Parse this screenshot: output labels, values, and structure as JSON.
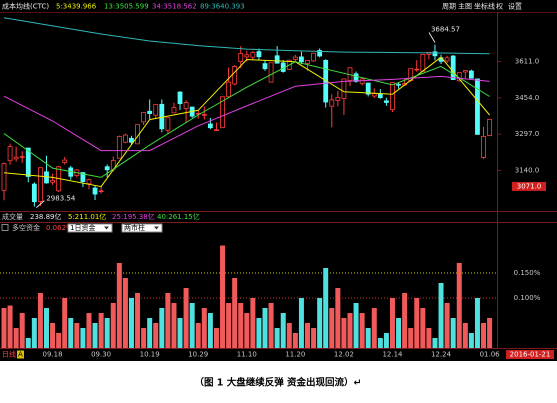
{
  "header": {
    "indicator": "成本均线(CTC)",
    "controls": [
      "周期",
      "主图",
      "坐标线",
      "权",
      "设置"
    ]
  },
  "volume_row": {
    "title": "成交量",
    "items": [
      "238.89亿",
      "5:211.01亿",
      "25:195.38亿",
      "40:261.15亿"
    ]
  },
  "period_label": "日线",
  "period_badge": "A",
  "caption": "（图 1  大盘继续反弹  资金出现回流）↵",
  "chart_data": [
    {
      "type": "candlestick",
      "categories": [
        null,
        null,
        null,
        null,
        null,
        null,
        null,
        null,
        "09.18",
        null,
        null,
        null,
        null,
        null,
        null,
        null,
        "09.30",
        null,
        null,
        null,
        null,
        null,
        null,
        null,
        "10.19",
        null,
        null,
        null,
        null,
        null,
        null,
        null,
        "10.29",
        null,
        null,
        null,
        null,
        null,
        null,
        null,
        "11.10",
        null,
        null,
        null,
        null,
        null,
        null,
        null,
        "11.20",
        null,
        null,
        null,
        null,
        null,
        null,
        null,
        "12.02",
        null,
        null,
        null,
        null,
        null,
        null,
        null,
        "12.14",
        null,
        null,
        null,
        null,
        null,
        null,
        null,
        "12.24",
        null,
        null,
        null,
        null,
        null,
        null,
        null,
        "01.06"
      ],
      "open": [
        3054,
        3182,
        3190,
        3197,
        3237,
        3081,
        3006,
        3134,
        3089,
        3052,
        3174,
        3151,
        3118,
        3131,
        3083,
        3064,
        3049,
        3156,
        3145,
        3193,
        3262,
        3279,
        3255,
        3350,
        3396,
        3379,
        3426,
        3314,
        3389,
        3479,
        3408,
        3414,
        3384,
        3380,
        3341,
        3316,
        3325,
        3459,
        3514,
        3611,
        3631,
        3630,
        3654,
        3602,
        3522,
        3636,
        3605,
        3577,
        3620,
        3631,
        3602,
        3614,
        3659,
        3616,
        3418,
        3442,
        3451,
        3529,
        3558,
        3517,
        3518,
        3462,
        3470,
        3441,
        3403,
        3512,
        3510,
        3529,
        3578,
        3569,
        3642,
        3653,
        3627,
        3614,
        3635,
        3528,
        3566,
        3570,
        3536,
        3196,
        3291
      ],
      "high": [
        3174,
        3256,
        3243,
        3223,
        3237,
        3089,
        3153,
        3204,
        3126,
        3160,
        3199,
        3160,
        3146,
        3133,
        3104,
        3076,
        3073,
        3166,
        3200,
        3291,
        3299,
        3290,
        3338,
        3393,
        3447,
        3425,
        3447,
        3369,
        3433,
        3483,
        3444,
        3416,
        3399,
        3417,
        3367,
        3347,
        3459,
        3585,
        3596,
        3678,
        3658,
        3657,
        3667,
        3617,
        3607,
        3678,
        3617,
        3617,
        3640,
        3654,
        3616,
        3647,
        3668,
        3621,
        3470,
        3483,
        3538,
        3586,
        3568,
        3543,
        3518,
        3495,
        3492,
        3454,
        3521,
        3522,
        3537,
        3581,
        3617,
        3643,
        3651,
        3684.57,
        3641,
        3636,
        3639,
        3564,
        3573,
        3576,
        3538,
        3328,
        3362
      ],
      "low": [
        3011,
        3165,
        3178,
        3173,
        3089,
        2983.54,
        2986,
        3083,
        3078,
        3047,
        3166,
        3100,
        3109,
        3068,
        3058,
        3012,
        3039,
        3112,
        3135,
        3193,
        3258,
        3252,
        3254,
        3337,
        3362,
        3367,
        3305,
        3299,
        3389,
        3402,
        3345,
        3368,
        3364,
        3360,
        3318,
        3312,
        3325,
        3459,
        3508,
        3582,
        3611,
        3615,
        3617,
        3571,
        3521,
        3602,
        3563,
        3575,
        3607,
        3600,
        3571,
        3610,
        3629,
        3412,
        3327,
        3417,
        3380,
        3505,
        3519,
        3508,
        3460,
        3453,
        3450,
        3420,
        3393,
        3494,
        3506,
        3524,
        3567,
        3568,
        3620,
        3617,
        3600,
        3605,
        3533,
        3524,
        3538,
        3538,
        3295,
        3189,
        3288
      ],
      "close": [
        3170,
        3243,
        3197,
        3200,
        3114,
        3005,
        3152,
        3086,
        3097,
        3156,
        3185,
        3115,
        3142,
        3092,
        3100,
        3038,
        3052,
        3143,
        3183,
        3287,
        3293,
        3262,
        3338,
        3391,
        3386,
        3425,
        3320,
        3368,
        3412,
        3429,
        3434,
        3375,
        3387,
        3382,
        3325,
        3316,
        3459,
        3522,
        3590,
        3646,
        3640,
        3650,
        3632,
        3580,
        3606,
        3604,
        3568,
        3617,
        3630,
        3610,
        3616,
        3647,
        3635,
        3436,
        3445,
        3456,
        3536,
        3584,
        3525,
        3536,
        3470,
        3472,
        3455,
        3434,
        3520,
        3510,
        3516,
        3580,
        3578,
        3642,
        3651,
        3636,
        3612,
        3627,
        3533,
        3563,
        3572,
        3539,
        3296,
        3287,
        3361
      ],
      "up_color": "#ff3c3c",
      "down_color": "#54fcfc",
      "ylim": [
        2969,
        3808
      ],
      "yticks": [
        {
          "value": 3611,
          "label": "3611.0"
        },
        {
          "value": 3454,
          "label": "3454.0"
        },
        {
          "value": 3297,
          "label": "3297.0"
        },
        {
          "value": 3140,
          "label": "3140.0"
        }
      ],
      "cursor_price": {
        "value": 3071,
        "label": "3071.0"
      },
      "cursor_date": "2016-01-21",
      "moving_averages": [
        {
          "name": "5:3439.966",
          "color": "#f0f000",
          "x": [
            0,
            8,
            16,
            24,
            32,
            40,
            48,
            56,
            64,
            72,
            80
          ],
          "values": [
            3130,
            3110,
            3070,
            3360,
            3400,
            3620,
            3610,
            3480,
            3470,
            3630,
            3380
          ]
        },
        {
          "name": "13:3505.599",
          "color": "#40e040",
          "x": [
            0,
            8,
            16,
            24,
            32,
            40,
            48,
            56,
            64,
            72,
            80
          ],
          "values": [
            3300,
            3150,
            3110,
            3250,
            3380,
            3500,
            3610,
            3560,
            3510,
            3590,
            3460
          ]
        },
        {
          "name": "34:3518.562",
          "color": "#e040e0",
          "x": [
            0,
            8,
            16,
            24,
            32,
            40,
            48,
            56,
            64,
            72,
            80
          ],
          "values": [
            3461,
            3354,
            3226,
            3226,
            3333,
            3419,
            3504,
            3525,
            3534,
            3547,
            3525
          ]
        },
        {
          "name": "89:3640.393",
          "color": "#30b8b8",
          "x": [
            0,
            8,
            16,
            24,
            32,
            40,
            48,
            56,
            64,
            72,
            80
          ],
          "values": [
            3800,
            3765,
            3730,
            3700,
            3680,
            3665,
            3658,
            3652,
            3650,
            3648,
            3645
          ]
        }
      ]
    },
    {
      "type": "bar",
      "title": "多空资金",
      "value_label": "0.062%",
      "selects": [
        "1日资金",
        "两市柱"
      ],
      "values": [
        0.08,
        0.085,
        0.04,
        0.07,
        0.02,
        0.06,
        0.11,
        0.08,
        0.05,
        0.03,
        0.1,
        0.06,
        0.05,
        0.04,
        0.07,
        0.05,
        0.07,
        0.06,
        0.09,
        0.17,
        0.14,
        0.1,
        0.11,
        0.04,
        0.06,
        0.05,
        0.08,
        0.11,
        0.09,
        0.06,
        0.12,
        0.09,
        0.05,
        0.08,
        0.07,
        0.04,
        0.205,
        0.09,
        0.14,
        0.09,
        0.07,
        0.1,
        0.06,
        0.08,
        0.09,
        0.04,
        0.07,
        0.05,
        0.03,
        0.1,
        0.05,
        0.04,
        0.1,
        0.16,
        0.08,
        0.12,
        0.06,
        0.07,
        0.09,
        0.07,
        0.04,
        0.08,
        0.02,
        0.03,
        0.1,
        0.06,
        0.11,
        0.04,
        0.1,
        0.08,
        0.04,
        0.02,
        0.13,
        0.09,
        0.06,
        0.17,
        0.05,
        0.03,
        0.1,
        0.05,
        0.06
      ],
      "ylim": [
        0,
        0.226
      ],
      "yticks": [
        {
          "value": 0.15,
          "label": "0.150%"
        },
        {
          "value": 0.1,
          "label": "0.100%"
        }
      ],
      "grid_colors": [
        "#c8c800",
        "#c83030"
      ]
    }
  ]
}
